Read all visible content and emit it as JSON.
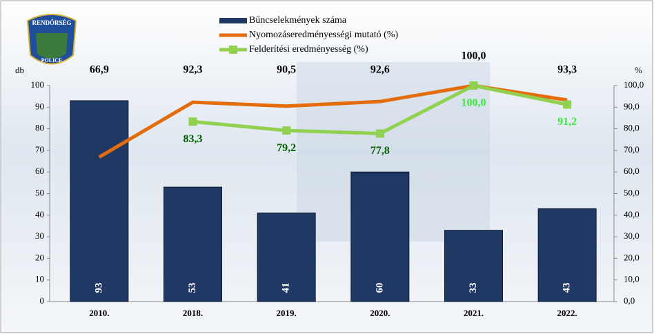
{
  "logo": {
    "top": "RENDŐRSÉG",
    "bottom": "POLICE"
  },
  "chart_data": {
    "type": "bar-line",
    "categories": [
      "2010.",
      "2018.",
      "2019.",
      "2020.",
      "2021.",
      "2022."
    ],
    "y_label": "db",
    "y2_label": "%",
    "ylim": [
      0,
      100
    ],
    "yticks": [
      0,
      10,
      20,
      30,
      40,
      50,
      60,
      70,
      80,
      90,
      100
    ],
    "y2lim": [
      0,
      100
    ],
    "y2ticks": [
      {
        "value": 0,
        "label": "0,0"
      },
      {
        "value": 10,
        "label": "10,0"
      },
      {
        "value": 20,
        "label": "20,0"
      },
      {
        "value": 30,
        "label": "30,0"
      },
      {
        "value": 40,
        "label": "40,0"
      },
      {
        "value": 50,
        "label": "50,0"
      },
      {
        "value": 60,
        "label": "60,0"
      },
      {
        "value": 70,
        "label": "70,0"
      },
      {
        "value": 80,
        "label": "80,0"
      },
      {
        "value": 90,
        "label": "90,0"
      },
      {
        "value": 100,
        "label": "100,0"
      }
    ],
    "series": [
      {
        "name": "Bűncselekmények száma",
        "type": "bar",
        "color": "#1f3864",
        "values": [
          93,
          53,
          41,
          60,
          33,
          43
        ]
      },
      {
        "name": "Nyomozáseredményességi mutató (%)",
        "type": "line",
        "axis": "y2",
        "color": "#e46c0a",
        "values": [
          66.9,
          92.3,
          90.5,
          92.6,
          100.0,
          93.3
        ],
        "value_labels": [
          "66,9",
          "92,3",
          "90,5",
          "92,6",
          "100,0",
          "93,3"
        ]
      },
      {
        "name": "Felderítési eredményesség (%)",
        "type": "line",
        "axis": "y2",
        "color": "#92d050",
        "values": [
          null,
          83.3,
          79.2,
          77.8,
          100.0,
          91.2
        ],
        "value_labels": [
          null,
          "83,3",
          "79,2",
          "77,8",
          "100,0",
          "91,2"
        ],
        "label_colors": [
          "#006100",
          "#006100",
          "#006100",
          "#006100",
          "#33ee33",
          "#33ee33"
        ]
      }
    ]
  }
}
